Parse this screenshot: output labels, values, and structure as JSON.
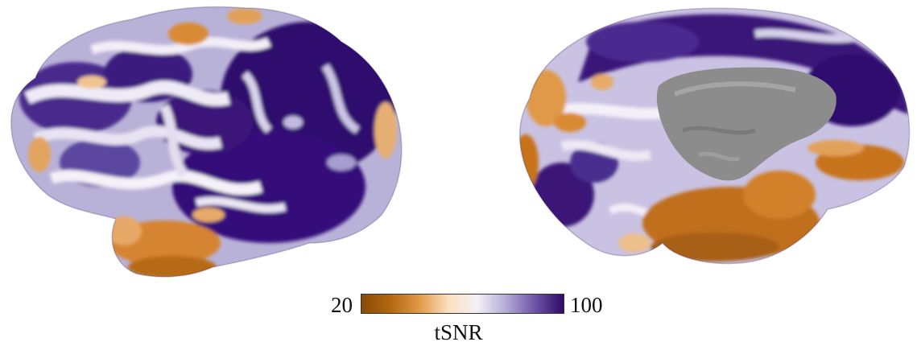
{
  "colorbar": {
    "min_label": "20",
    "max_label": "100",
    "title": "tSNR",
    "colors": [
      "#8a4a06",
      "#b36710",
      "#e09a45",
      "#fbe0bd",
      "#f3f1f6",
      "#b3acd4",
      "#6e55a6",
      "#2e0a6a"
    ]
  },
  "surface_colors": {
    "high": "#3a1078",
    "mid": "#eeeaf4",
    "low": "#c7731c",
    "medial_wall": "#8e8e8e"
  }
}
